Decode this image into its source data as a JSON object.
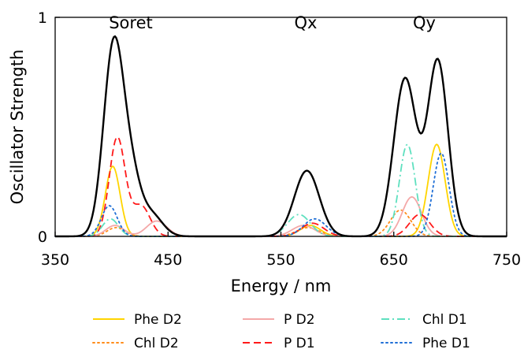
{
  "chart_data": {
    "type": "line",
    "title": "",
    "xlabel": "Energy / nm",
    "ylabel": "Oscillator Strength",
    "xlim": [
      350,
      750
    ],
    "ylim": [
      0,
      1
    ],
    "xticks": [
      350,
      450,
      550,
      650,
      750
    ],
    "xtick_labels": [
      "350",
      "450",
      "550",
      "650",
      "750"
    ],
    "yticks": [
      0,
      1
    ],
    "ytick_labels": [
      "0",
      "1"
    ],
    "grid": false,
    "legend_position": "below plot, 3 columns",
    "band_labels": [
      {
        "text": "Soret",
        "x": 417,
        "y": 0.95
      },
      {
        "text": "Qx",
        "x": 572,
        "y": 0.95
      },
      {
        "text": "Qy",
        "x": 677,
        "y": 0.95
      }
    ],
    "series": [
      {
        "name": "",
        "role": "total",
        "color": "#000000",
        "dash": "solid",
        "peaks": [
          [
            402,
            0.88,
            9
          ],
          [
            418,
            0.22,
            8
          ],
          [
            435,
            0.1,
            10
          ],
          [
            573,
            0.3,
            11
          ],
          [
            660,
            0.72,
            10
          ],
          [
            689,
            0.8,
            9
          ]
        ]
      },
      {
        "name": "Phe D2",
        "color": "#ffd400",
        "dash": "solid",
        "peaks": [
          [
            401,
            0.32,
            6.5
          ],
          [
            576,
            0.05,
            9
          ],
          [
            688,
            0.42,
            7.5
          ]
        ]
      },
      {
        "name": "Chl D2",
        "color": "#ff8c1a",
        "dash": "dot",
        "peaks": [
          [
            404,
            0.04,
            8
          ],
          [
            574,
            0.04,
            10
          ],
          [
            656,
            0.12,
            9
          ]
        ]
      },
      {
        "name": "P D2",
        "color": "#f4a8a8",
        "dash": "solid",
        "peaks": [
          [
            403,
            0.05,
            8
          ],
          [
            440,
            0.07,
            9
          ],
          [
            570,
            0.05,
            10
          ],
          [
            666,
            0.18,
            8.5
          ]
        ]
      },
      {
        "name": "P D1",
        "color": "#ff1a1a",
        "dash": "dash",
        "peaks": [
          [
            405,
            0.45,
            7
          ],
          [
            426,
            0.14,
            8
          ],
          [
            578,
            0.06,
            10
          ],
          [
            673,
            0.1,
            9
          ]
        ]
      },
      {
        "name": "Chl D1",
        "color": "#5ee0bf",
        "dash": "dashdot",
        "peaks": [
          [
            399,
            0.08,
            7
          ],
          [
            566,
            0.1,
            10
          ],
          [
            662,
            0.42,
            7
          ]
        ]
      },
      {
        "name": "Phe D1",
        "color": "#1f6fd6",
        "dash": "dot",
        "peaks": [
          [
            398,
            0.14,
            7
          ],
          [
            580,
            0.08,
            10
          ],
          [
            692,
            0.38,
            7
          ]
        ]
      }
    ],
    "legend": [
      {
        "label": "Phe D2",
        "color": "#ffd400",
        "dash": "solid"
      },
      {
        "label": "P D2",
        "color": "#f4a8a8",
        "dash": "solid"
      },
      {
        "label": "Chl D1",
        "color": "#5ee0bf",
        "dash": "dashdot"
      },
      {
        "label": "Chl D2",
        "color": "#ff8c1a",
        "dash": "dot"
      },
      {
        "label": "P D1",
        "color": "#ff1a1a",
        "dash": "dash"
      },
      {
        "label": "Phe D1",
        "color": "#1f6fd6",
        "dash": "dot"
      }
    ]
  }
}
